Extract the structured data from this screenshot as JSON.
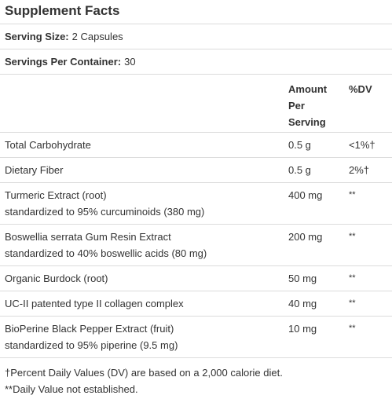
{
  "panel": {
    "title": "Supplement Facts",
    "serving_size_label": "Serving Size:",
    "serving_size_value": "2 Capsules",
    "servings_label": "Servings Per Container:",
    "servings_value": "30",
    "header": {
      "amount_line1": "Amount",
      "amount_line2": "Per",
      "amount_line3": "Serving",
      "dv": "%DV"
    },
    "rows": [
      {
        "name1": "Total Carbohydrate",
        "name2": "",
        "amount": "0.5 g",
        "dv": "<1%†"
      },
      {
        "name1": "Dietary Fiber",
        "name2": "",
        "amount": "0.5 g",
        "dv": "2%†"
      },
      {
        "name1": "Turmeric Extract (root)",
        "name2": "standardized to 95% curcuminoids (380 mg)",
        "amount": "400 mg",
        "dv": "**"
      },
      {
        "name1": "Boswellia serrata Gum Resin Extract",
        "name2": "standardized to 40% boswellic acids (80 mg)",
        "amount": "200 mg",
        "dv": "**"
      },
      {
        "name1": "Organic Burdock (root)",
        "name2": "",
        "amount": "50 mg",
        "dv": "**"
      },
      {
        "name1": "UC-II patented type II collagen complex",
        "name2": "",
        "amount": "40 mg",
        "dv": "**"
      },
      {
        "name1": "BioPerine Black Pepper Extract (fruit)",
        "name2": "standardized to 95% piperine (9.5 mg)",
        "amount": "10 mg",
        "dv": "**"
      }
    ],
    "footnote1": "†Percent Daily Values (DV) are based on a 2,000 calorie diet.",
    "footnote2": "**Daily Value not established."
  }
}
